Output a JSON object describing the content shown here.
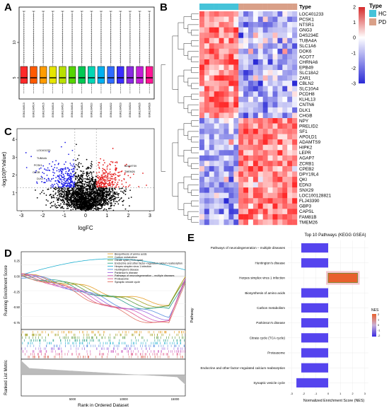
{
  "panel_letters": [
    "A",
    "B",
    "C",
    "D",
    "E"
  ],
  "chart_data": [
    {
      "panel": "A",
      "type": "box",
      "categories": [
        "GSM1064513",
        "GSM1064514",
        "GSM1064515",
        "GSM1064516",
        "GSM1064517",
        "GSM1064518",
        "GSM1064519",
        "GSM1064520",
        "GSM1064521",
        "GSM1064522",
        "GSM1064523",
        "GSM1064524",
        "GSM1064525",
        "GSM1064526"
      ],
      "yticks": [
        5,
        10
      ],
      "ylim": [
        2,
        15
      ],
      "box_stats": {
        "q1": 4.2,
        "median": 5.0,
        "q3": 6.6,
        "whisker_low": 2.8,
        "whisker_high": 14.4
      },
      "colors": [
        "#ff2a2a",
        "#ff5a00",
        "#ff9d00",
        "#e6e600",
        "#b8e000",
        "#55d400",
        "#00c853",
        "#00d6b4",
        "#00b0f0",
        "#2f6cff",
        "#3a2fff",
        "#8a2be2",
        "#c21fd6",
        "#ff1493"
      ]
    },
    {
      "panel": "B",
      "type": "heatmap",
      "legend_title": "Type",
      "groups": [
        {
          "name": "HC",
          "color": "#45c3d9",
          "count": 8
        },
        {
          "name": "PD",
          "color": "#d9a088",
          "count": 12
        }
      ],
      "color_scale_ticks": [
        2,
        1,
        0,
        -1,
        -2,
        -3
      ],
      "color_low": "#2b2bd6",
      "color_mid": "#ffffff",
      "color_high": "#d62b2b",
      "genes_up_in_hc": [
        "LOC401233",
        "PCSK1",
        "NTSR1",
        "GNG3",
        "D4S234E",
        "TUBA4A",
        "SLC1A6",
        "DOK6",
        "ACOT7",
        "CHRNA6",
        "EPB49",
        "SLC18A2",
        "ZAR1",
        "CBLN2",
        "SLC10A4",
        "PCDH8",
        "KLHL13",
        "CNTN6",
        "DLK1",
        "CHGB"
      ],
      "genes_up_in_pd": [
        "NPY",
        "PRELID2",
        "SF1",
        "APOLD1",
        "ADAMTS9",
        "HIPK2",
        "LEPR",
        "AGAP7",
        "ZCRB1",
        "CPEB2",
        "DPY19L4",
        "QKI",
        "EDN3",
        "SNX29",
        "LOC100128821",
        "FLJ43390",
        "GBP3",
        "CAPSL",
        "FAM81B",
        "TMEM26"
      ]
    },
    {
      "panel": "C",
      "type": "scatter",
      "xlabel": "logFC",
      "ylabel": "-log10(P.Value)",
      "xticks": [
        -3,
        -2,
        -1,
        0,
        1,
        2,
        3
      ],
      "yticks": [
        1,
        2,
        3,
        4
      ],
      "xlim": [
        -3.2,
        3.2
      ],
      "ylim": [
        0,
        4.6
      ],
      "thresholds": {
        "logFC": 0.5,
        "p": 1.3
      },
      "colors": {
        "down": "#1f1fe6",
        "up": "#e61f1f",
        "ns": "#000000"
      },
      "labels_left": [
        "LOC401233",
        "TUBA4A",
        "PCSK1",
        "CHGB",
        "DLK1"
      ],
      "labels_right": [
        "ADAMTS9",
        "TMEM26"
      ]
    },
    {
      "panel": "D",
      "type": "line",
      "ylabel_top": "Running Enrichment Score",
      "ylabel_bottom": "Ranked List Metric",
      "xlabel": "Rank in Ordered Dataset",
      "xticks": [
        "5000",
        "10000",
        "15000"
      ],
      "yticks": [
        "0.25",
        "0.00",
        "-0.25",
        "-0.50",
        "-0.75"
      ],
      "series": [
        {
          "name": "Biosynthesis of amino acids",
          "color": "#e6a02a"
        },
        {
          "name": "Carbon metabolism",
          "color": "#a0a020"
        },
        {
          "name": "Citrate cycle (TCA cycle)",
          "color": "#5a9a3a"
        },
        {
          "name": "Endocrine and other factor–regulated calcium reabsorption",
          "color": "#2aa08a"
        },
        {
          "name": "Herpes simplex virus 1 infection",
          "color": "#20b0d0"
        },
        {
          "name": "Huntington's disease",
          "color": "#5a90e0"
        },
        {
          "name": "Parkinson's disease",
          "color": "#9a6ae0"
        },
        {
          "name": "Pathways of neurodegeneration – multiple diseases",
          "color": "#d060c0"
        },
        {
          "name": "Proteasome",
          "color": "#e05a8a"
        },
        {
          "name": "Synaptic vesicle cycle",
          "color": "#e07060"
        }
      ]
    },
    {
      "panel": "E",
      "type": "bar",
      "title": "Top 10 Pathways (KEGG GSEA)",
      "xlabel": "Normalized Enrichment Score (NES)",
      "ylabel": "Pathway",
      "legend_title": "NES",
      "legend_ticks": [
        "2",
        "1",
        "0",
        "-1",
        "-2"
      ],
      "xticks": [
        "-3",
        "-2",
        "-1",
        "0",
        "1",
        "2",
        "3"
      ],
      "xlim": [
        -3.3,
        3.3
      ],
      "categories": [
        "Pathways of neurodegeneration – multiple diseases",
        "Huntington's disease",
        "Herpes simplex virus 1 infection",
        "Biosynthesis of amino acids",
        "Carbon metabolism",
        "Parkinson's disease",
        "Citrate cycle (TCA cycle)",
        "Proteasome",
        "Endocrine and other factor–regulated calcium reabsorption",
        "Synaptic vesicle cycle"
      ],
      "values": [
        -2.2,
        -2.2,
        2.4,
        -2.2,
        -2.2,
        -2.2,
        -2.2,
        -2.2,
        -2.2,
        -2.6
      ],
      "bar_color_neg": "#5544ee",
      "bar_color_pos": "#e8602e"
    }
  ]
}
